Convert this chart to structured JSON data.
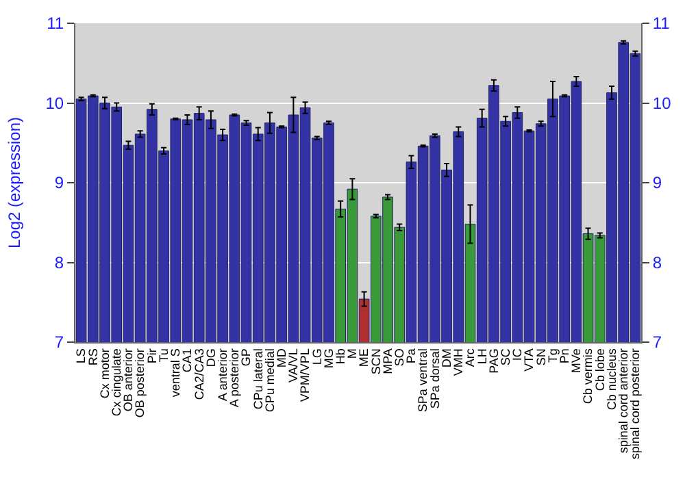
{
  "chart_data": {
    "type": "bar",
    "ylabel": "Log2 (expression)",
    "categories": [
      "LS",
      "RS",
      "Cx motor",
      "Cx cingulate",
      "OB anterior",
      "OB posterior",
      "Pir",
      "Tu",
      "ventral S",
      "CA1",
      "CA2/CA3",
      "DG",
      "A anterior",
      "A posterior",
      "GP",
      "CPu lateral",
      "CPu medial",
      "MD",
      "VA/VL",
      "VPM/VPL",
      "LG",
      "MG",
      "Hb",
      "M",
      "ME",
      "SCN",
      "MPA",
      "SO",
      "Pa",
      "SPa ventral",
      "SPa dorsal",
      "DM",
      "VMH",
      "Arc",
      "LH",
      "PAG",
      "SC",
      "IC",
      "VTA",
      "SN",
      "Tg",
      "Pn",
      "MVe",
      "Cb vermis",
      "Cb lobe",
      "Cb nucleus",
      "spinal cord anterior",
      "spinal cord posterior"
    ],
    "values": [
      10.05,
      10.09,
      10.0,
      9.95,
      9.47,
      9.61,
      9.92,
      9.4,
      9.8,
      9.79,
      9.87,
      9.79,
      9.6,
      9.85,
      9.75,
      9.61,
      9.75,
      9.7,
      9.85,
      9.94,
      9.56,
      9.75,
      8.67,
      8.92,
      7.54,
      8.58,
      8.82,
      8.44,
      9.26,
      9.46,
      9.59,
      9.16,
      9.64,
      8.48,
      9.81,
      10.22,
      9.77,
      9.88,
      9.65,
      9.74,
      10.05,
      10.09,
      10.27,
      8.36,
      8.34,
      10.13,
      10.76,
      10.62
    ],
    "errors": [
      0.02,
      0.01,
      0.07,
      0.05,
      0.05,
      0.04,
      0.07,
      0.04,
      0.01,
      0.06,
      0.08,
      0.11,
      0.07,
      0.01,
      0.03,
      0.08,
      0.13,
      0.01,
      0.22,
      0.07,
      0.02,
      0.02,
      0.1,
      0.13,
      0.09,
      0.02,
      0.03,
      0.04,
      0.08,
      0.01,
      0.02,
      0.08,
      0.06,
      0.24,
      0.11,
      0.07,
      0.06,
      0.07,
      0.01,
      0.03,
      0.22,
      0.01,
      0.06,
      0.07,
      0.03,
      0.08,
      0.02,
      0.03
    ],
    "colors": [
      "#3333a6",
      "#3333a6",
      "#3333a6",
      "#3333a6",
      "#3333a6",
      "#3333a6",
      "#3333a6",
      "#3333a6",
      "#3333a6",
      "#3333a6",
      "#3333a6",
      "#3333a6",
      "#3333a6",
      "#3333a6",
      "#3333a6",
      "#3333a6",
      "#3333a6",
      "#3333a6",
      "#3333a6",
      "#3333a6",
      "#3333a6",
      "#3333a6",
      "#3a9a3a",
      "#3a9a3a",
      "#b03030",
      "#3a9a3a",
      "#3a9a3a",
      "#3a9a3a",
      "#3333a6",
      "#3333a6",
      "#3333a6",
      "#3333a6",
      "#3333a6",
      "#3a9a3a",
      "#3333a6",
      "#3333a6",
      "#3333a6",
      "#3333a6",
      "#3333a6",
      "#3333a6",
      "#3333a6",
      "#3333a6",
      "#3333a6",
      "#3a9a3a",
      "#3a9a3a",
      "#3333a6",
      "#3333a6",
      "#3333a6"
    ],
    "ylim": [
      7,
      11
    ],
    "yticks": [
      7,
      8,
      9,
      10,
      11
    ],
    "y2lim": [
      7,
      11
    ],
    "y2ticks": [
      7,
      8,
      9,
      10,
      11
    ],
    "grid": "y"
  }
}
